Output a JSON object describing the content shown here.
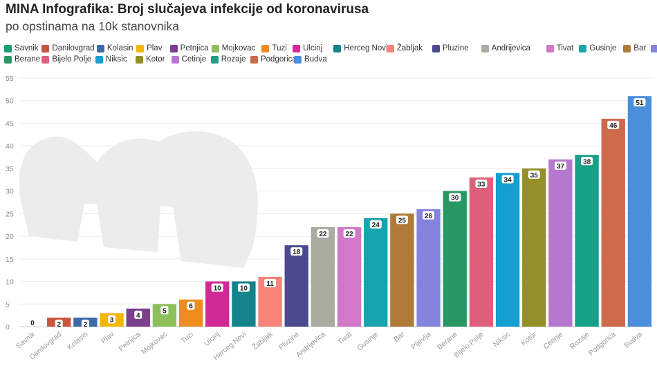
{
  "header": {
    "title": "MINA Infografika: Broj slučajeva infekcije od koronavirusa",
    "subtitle": "po opstinama na 10k stanovnika"
  },
  "legend": {
    "rows": [
      [
        {
          "label": "Savnik",
          "color": "#1a9e77"
        },
        {
          "label": "Danilovgrad",
          "color": "#c8553d"
        },
        {
          "label": "Kolasin",
          "color": "#3a6ba8"
        },
        {
          "label": "Plav",
          "color": "#f2b705"
        },
        {
          "label": "Petnjica",
          "color": "#7b3f8c"
        },
        {
          "label": "Mojkovac",
          "color": "#8dc05a"
        },
        {
          "label": "Tuzi",
          "color": "#ee8c1e"
        },
        {
          "label": "Ulcinj",
          "color": "#d12a96"
        },
        {
          "label": "Herceg Novi",
          "color": "#13838c"
        },
        {
          "label": "Žabljak",
          "color": "#f88379"
        },
        {
          "label": "Pluzine",
          "color": "#4b4a8e"
        },
        {
          "label": "Andrijevica",
          "color": "#a9ac9e"
        },
        {
          "label": "Tivat",
          "color": "#d377c8"
        },
        {
          "label": "Gusinje",
          "color": "#17a5ad"
        },
        {
          "label": "Bar",
          "color": "#b07b39"
        },
        {
          "label": "Pljevlja",
          "color": "#8484de"
        }
      ],
      [
        {
          "label": "Berane",
          "color": "#2a9864"
        },
        {
          "label": "Bijelo Polje",
          "color": "#dd5f79"
        },
        {
          "label": "Niksic",
          "color": "#139fd0"
        },
        {
          "label": "Kotor",
          "color": "#948f26"
        },
        {
          "label": "Cetinje",
          "color": "#b677cf"
        },
        {
          "label": "Rozaje",
          "color": "#16a085"
        },
        {
          "label": "Podgorica",
          "color": "#cd6a4c"
        },
        {
          "label": "Budva",
          "color": "#4a8fdc"
        }
      ]
    ]
  },
  "chart_data": {
    "type": "bar",
    "title": "MINA Infografika: Broj slučajeva infekcije od koronavirusa",
    "subtitle": "po opstinama na 10k stanovnika",
    "xlabel": "",
    "ylabel": "",
    "ylim": [
      0,
      55
    ],
    "yticks": [
      0,
      5,
      10,
      15,
      20,
      25,
      30,
      35,
      40,
      45,
      50,
      55
    ],
    "grid": true,
    "legend_position": "top",
    "categories": [
      "Savnik",
      "Danilovgrad",
      "Kolasin",
      "Plav",
      "Petnjica",
      "Mojkovac",
      "Tuzi",
      "Ulcinj",
      "Herceg Novi",
      "Žabljak",
      "Pluzine",
      "Andrijevica",
      "Tivat",
      "Gusinje",
      "Bar",
      "Pljevlja",
      "Berane",
      "Bijelo Polje",
      "Niksic",
      "Kotor",
      "Cetinje",
      "Rozaje",
      "Podgorica",
      "Budva"
    ],
    "values": [
      0,
      2,
      2,
      3,
      4,
      5,
      6,
      10,
      10,
      11,
      18,
      22,
      22,
      24,
      25,
      26,
      30,
      33,
      34,
      35,
      37,
      38,
      46,
      51
    ],
    "colors": [
      "#1a9e77",
      "#c8553d",
      "#3a6ba8",
      "#f2b705",
      "#7b3f8c",
      "#8dc05a",
      "#ee8c1e",
      "#d12a96",
      "#13838c",
      "#f88379",
      "#4b4a8e",
      "#a9ac9e",
      "#d377c8",
      "#17a5ad",
      "#b07b39",
      "#8484de",
      "#2a9864",
      "#dd5f79",
      "#139fd0",
      "#948f26",
      "#b677cf",
      "#16a085",
      "#cd6a4c",
      "#4a8fdc"
    ]
  }
}
